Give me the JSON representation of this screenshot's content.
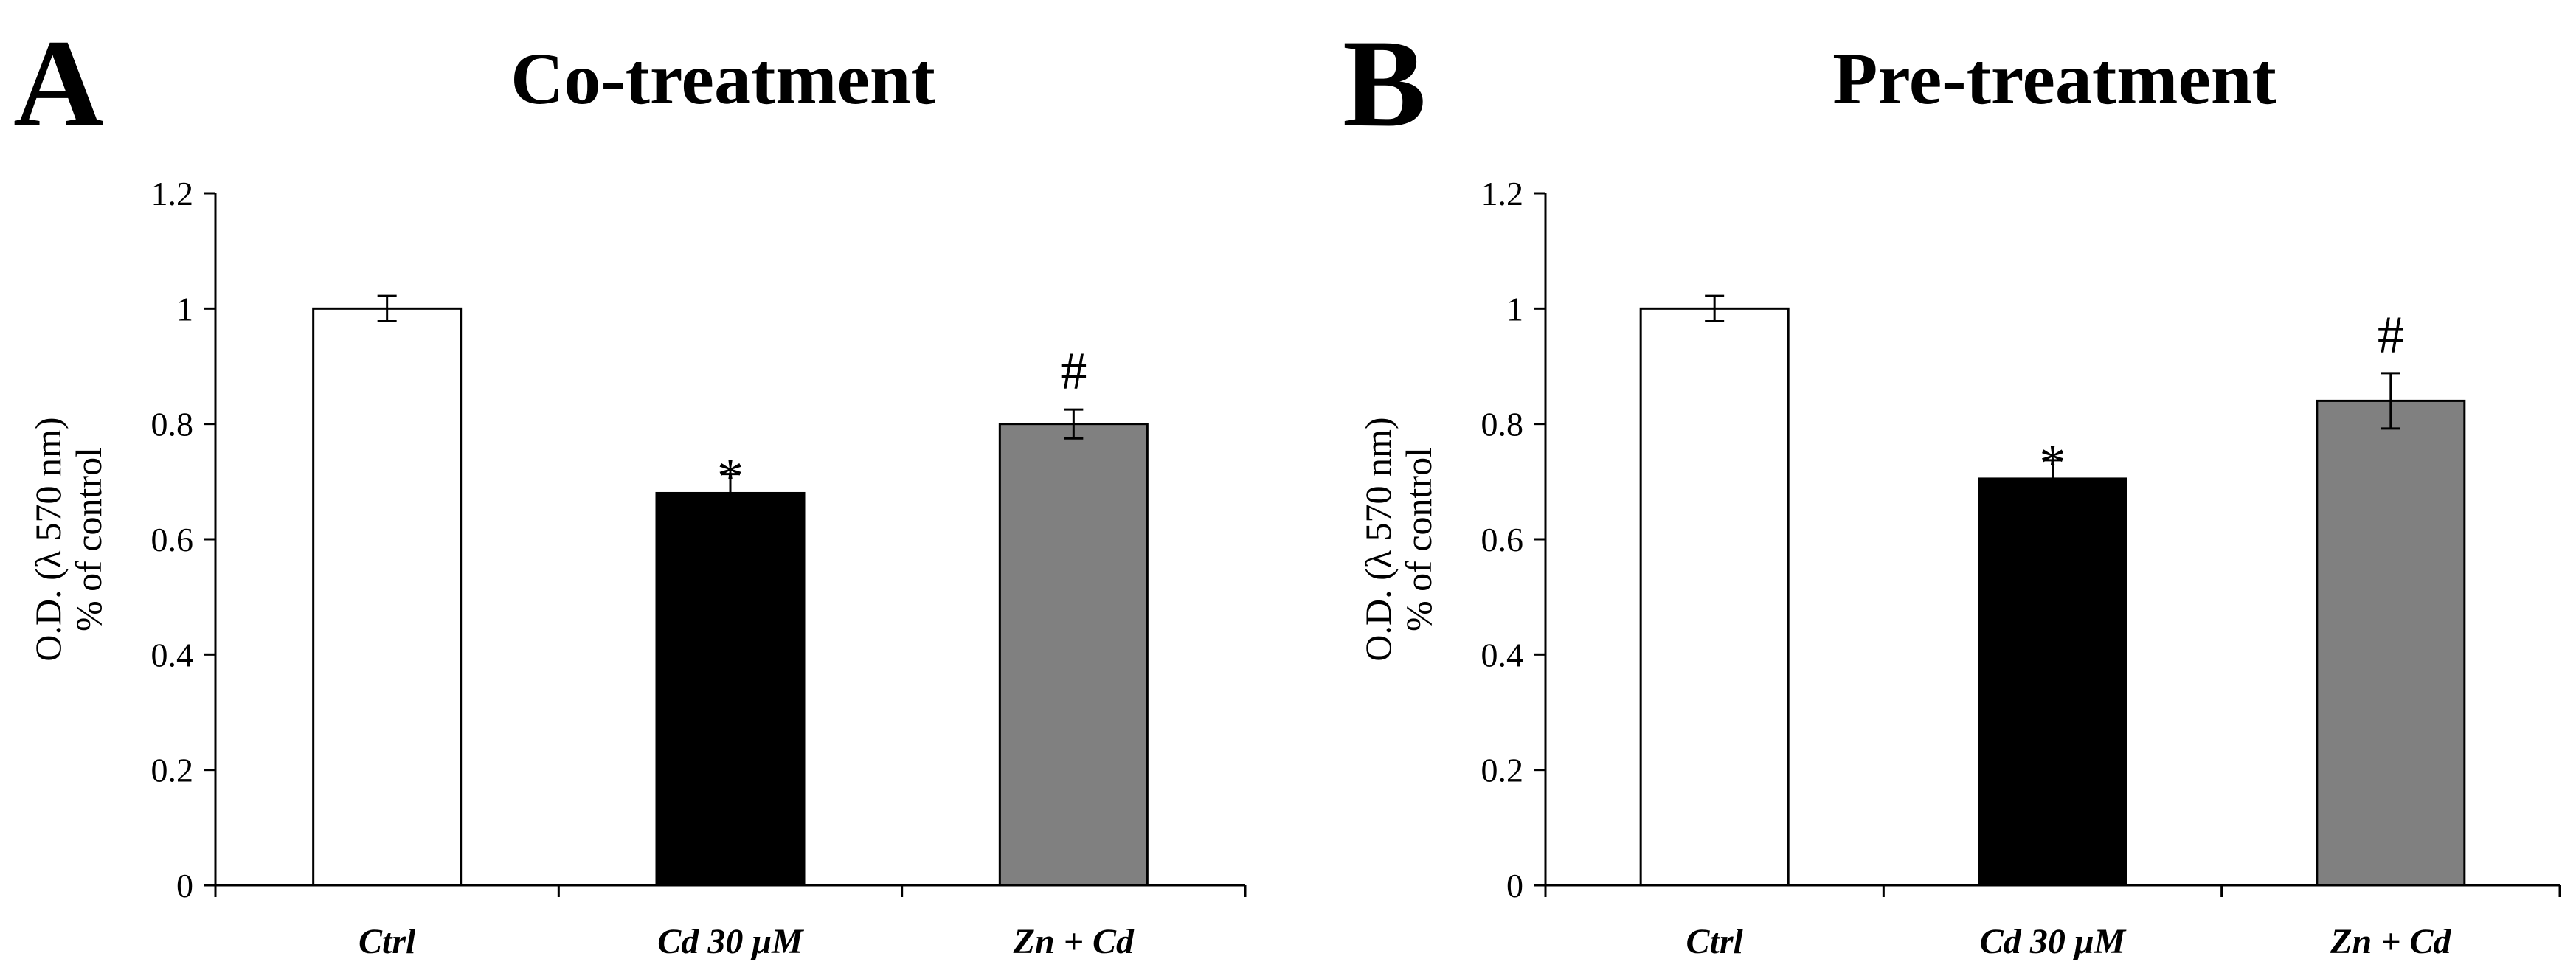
{
  "chart_data": [
    {
      "type": "bar",
      "panel_label": "A",
      "title": "Co-treatment",
      "ylabel_line1": "O.D. (λ 570 nm)",
      "ylabel_line2": "% of control",
      "xlabel": "",
      "ylim": [
        0,
        1.2
      ],
      "yticks": [
        0,
        0.2,
        0.4,
        0.6,
        0.8,
        1,
        1.2
      ],
      "ytick_labels": [
        "0",
        "0.2",
        "0.4",
        "0.6",
        "0.8",
        "1",
        "1.2"
      ],
      "categories": [
        "Ctrl",
        "Cd 30 μM",
        "Zn + Cd"
      ],
      "values": [
        1.0,
        0.68,
        0.8
      ],
      "errors": [
        0.022,
        0.033,
        0.025
      ],
      "bar_colors": [
        "#ffffff",
        "#000000",
        "#808080"
      ],
      "annotations": [
        "",
        "*",
        "#"
      ],
      "grid": false
    },
    {
      "type": "bar",
      "panel_label": "B",
      "title": "Pre-treatment",
      "ylabel_line1": "O.D. (λ 570 nm)",
      "ylabel_line2": "% of control",
      "xlabel": "",
      "ylim": [
        0,
        1.2
      ],
      "yticks": [
        0,
        0.2,
        0.4,
        0.6,
        0.8,
        1,
        1.2
      ],
      "ytick_labels": [
        "0",
        "0.2",
        "0.4",
        "0.6",
        "0.8",
        "1",
        "1.2"
      ],
      "categories": [
        "Ctrl",
        "Cd 30 μM",
        "Zn + Cd"
      ],
      "values": [
        1.0,
        0.705,
        0.84
      ],
      "errors": [
        0.022,
        0.032,
        0.048
      ],
      "bar_colors": [
        "#ffffff",
        "#000000",
        "#808080"
      ],
      "annotations": [
        "",
        "*",
        "#"
      ],
      "grid": false
    }
  ]
}
